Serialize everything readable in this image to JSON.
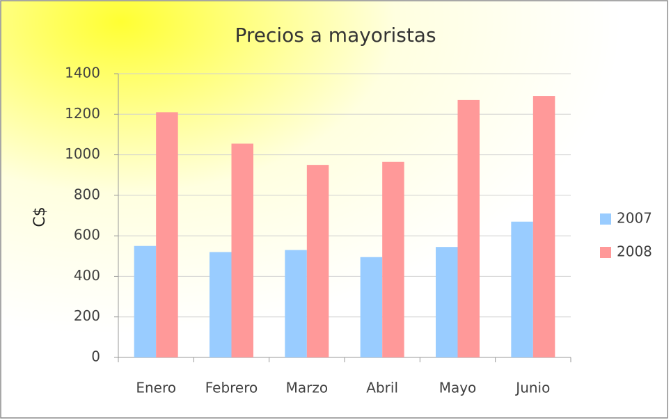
{
  "chart_data": {
    "type": "bar",
    "title": "Precios a mayoristas",
    "y_label": "C$",
    "categories": [
      "Enero",
      "Febrero",
      "Marzo",
      "Abril",
      "Mayo",
      "Junio"
    ],
    "series": [
      {
        "name": "2007",
        "color": "#99ccff",
        "values": [
          550,
          520,
          530,
          495,
          545,
          670
        ]
      },
      {
        "name": "2008",
        "color": "#ff9999",
        "values": [
          1210,
          1055,
          950,
          965,
          1270,
          1290
        ]
      }
    ],
    "ylim": [
      0,
      1400
    ],
    "yticks": [
      0,
      200,
      400,
      600,
      800,
      1000,
      1200,
      1400
    ],
    "grid": true,
    "legend": "right"
  }
}
